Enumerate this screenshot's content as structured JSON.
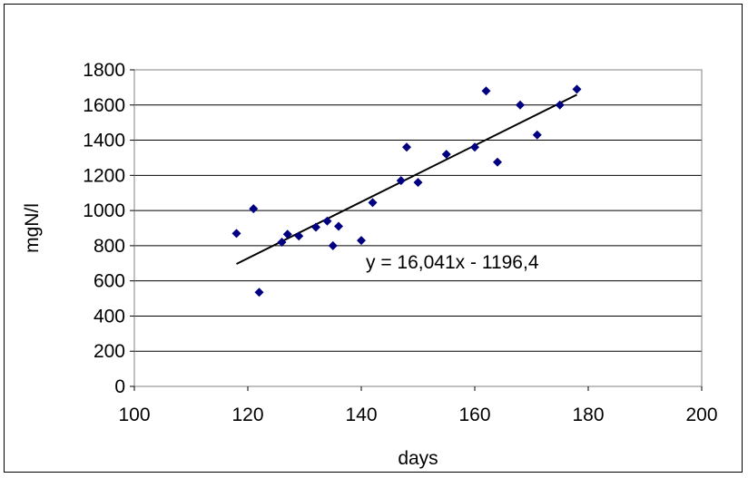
{
  "chart_data": {
    "type": "scatter",
    "xlabel": "days",
    "ylabel": "mgN/l",
    "xlim": [
      100,
      200
    ],
    "ylim": [
      0,
      1800
    ],
    "xticks": [
      100,
      120,
      140,
      160,
      180,
      200
    ],
    "yticks": [
      0,
      200,
      400,
      600,
      800,
      1000,
      1200,
      1400,
      1600,
      1800
    ],
    "grid": "horizontal",
    "marker_color": "#000080",
    "series": [
      {
        "points": [
          [
            118,
            870
          ],
          [
            121,
            1010
          ],
          [
            122,
            535
          ],
          [
            126,
            820
          ],
          [
            127,
            865
          ],
          [
            129,
            855
          ],
          [
            132,
            905
          ],
          [
            134,
            940
          ],
          [
            135,
            800
          ],
          [
            136,
            910
          ],
          [
            140,
            830
          ],
          [
            142,
            1045
          ],
          [
            147,
            1170
          ],
          [
            148,
            1360
          ],
          [
            150,
            1160
          ],
          [
            155,
            1320
          ],
          [
            160,
            1360
          ],
          [
            162,
            1680
          ],
          [
            164,
            1275
          ],
          [
            168,
            1600
          ],
          [
            171,
            1430
          ],
          [
            175,
            1600
          ],
          [
            178,
            1690
          ]
        ]
      }
    ],
    "trendline": {
      "slope": 16.041,
      "intercept": -1196.4,
      "x_range": [
        118,
        178
      ],
      "label": "y = 16,041x - 1196,4"
    }
  }
}
